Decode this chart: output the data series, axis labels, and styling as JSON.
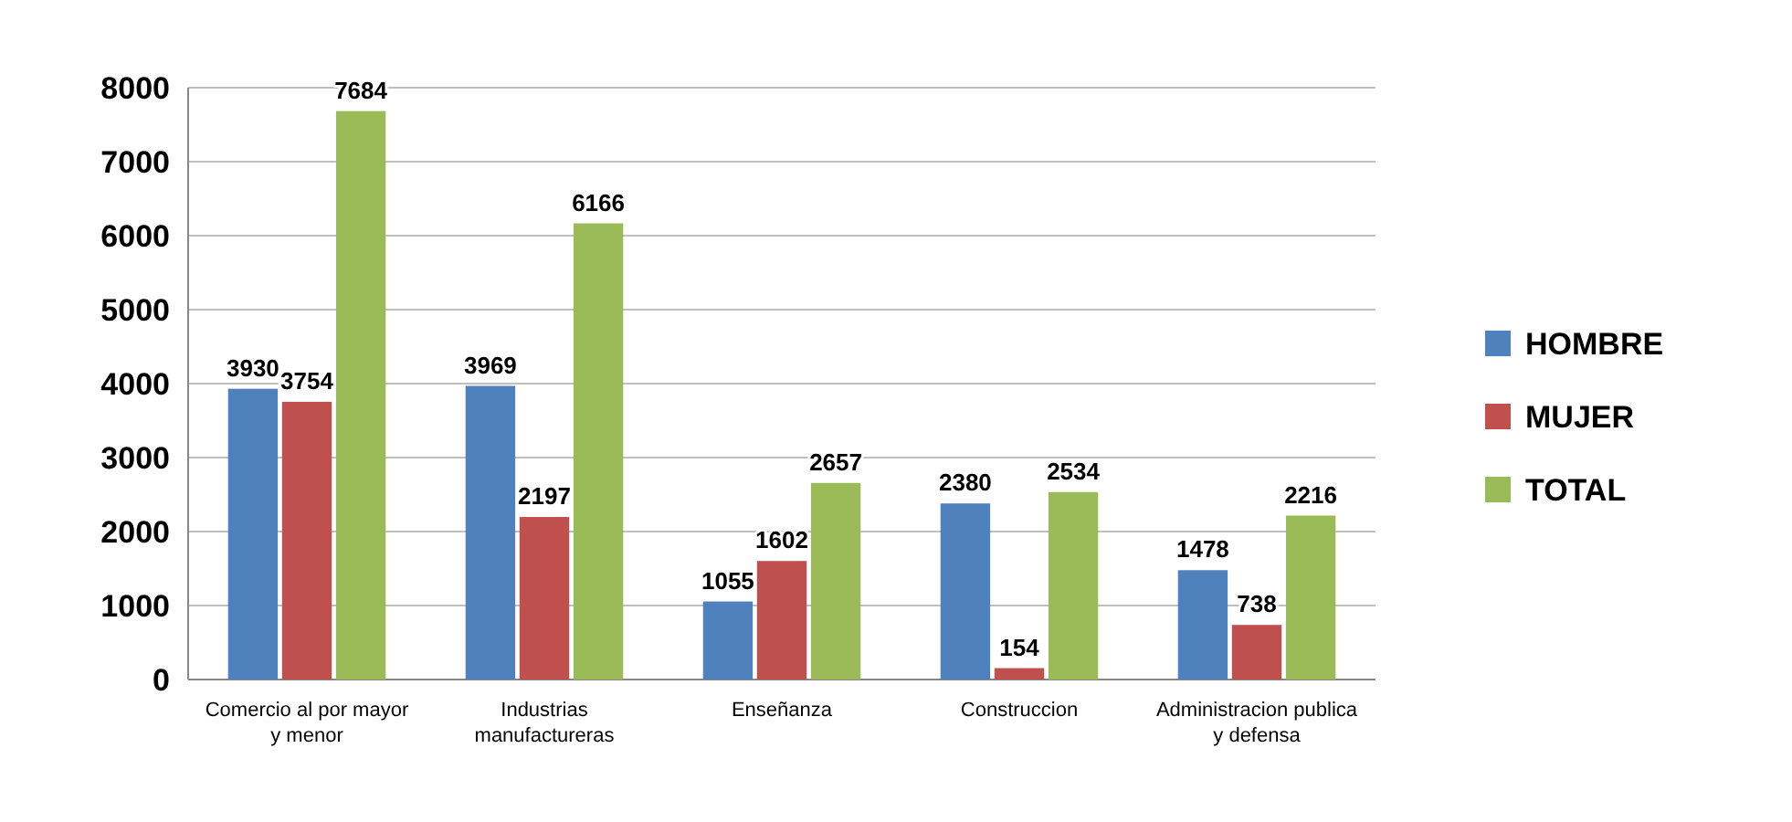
{
  "chart_data": {
    "type": "bar",
    "categories": [
      "Comercio al por mayor y menor",
      "Industrias manufactureras",
      "Enseñanza",
      "Construccion",
      "Administracion publica y defensa"
    ],
    "series": [
      {
        "name": "HOMBRE",
        "color": "#4f81bd",
        "values": [
          3930,
          3969,
          1055,
          2380,
          1478
        ]
      },
      {
        "name": "MUJER",
        "color": "#c0504d",
        "values": [
          3754,
          2197,
          1602,
          154,
          738
        ]
      },
      {
        "name": "TOTAL",
        "color": "#9bbb59",
        "values": [
          7684,
          6166,
          2657,
          2534,
          2216
        ]
      }
    ],
    "ylim": [
      0,
      8000
    ],
    "yticks": [
      0,
      1000,
      2000,
      3000,
      4000,
      5000,
      6000,
      7000,
      8000
    ],
    "grid": "y",
    "legend": "right",
    "data_labels": true
  }
}
